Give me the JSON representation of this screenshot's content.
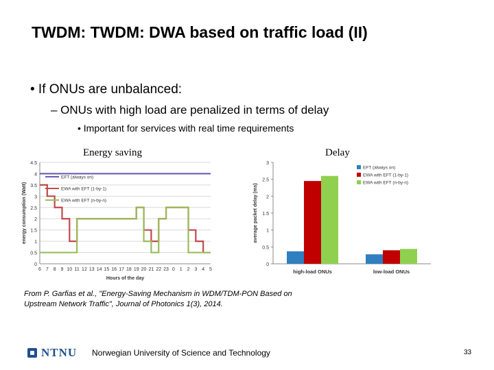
{
  "slide": {
    "title": "TWDM: TWDM: DWA based on traffic load (II)",
    "bullet1": "• If ONUs are unbalanced:",
    "bullet2": "– ONUs with high load are penalized in terms of delay",
    "bullet3": "• Important for services with real time requirements",
    "caption_left": "Energy saving",
    "caption_right": "Delay",
    "citation_line1": "From P. Garfias et al., \"Energy-Saving Mechanism in WDM/TDM-PON Based on",
    "citation_line2": "Upstream Network Traffic\", Journal of Photonics 1(3), 2014.",
    "footer": "Norwegian University of Science and Technology",
    "page_number": "33",
    "logo_text": "NTNU"
  },
  "chart_data": [
    {
      "type": "line",
      "xlabel": "Hours of the day",
      "ylabel": "energy consumption (Watt)",
      "ylim": [
        0,
        4.5
      ],
      "yticks": [
        "0",
        "0.5",
        "1",
        "1.5",
        "2",
        "2.5",
        "3",
        "3.5",
        "4",
        "4.5"
      ],
      "x": [
        "6",
        "7",
        "8",
        "9",
        "10",
        "11",
        "12",
        "13",
        "14",
        "15",
        "16",
        "17",
        "18",
        "19",
        "20",
        "21",
        "22",
        "23",
        "0",
        "1",
        "2",
        "3",
        "4",
        "5"
      ],
      "grid": true,
      "legend_position": "top-left",
      "series": [
        {
          "name": "EFT (always on)",
          "color": "#6a5bb8",
          "values": [
            4,
            4,
            4,
            4,
            4,
            4,
            4,
            4,
            4,
            4,
            4,
            4,
            4,
            4,
            4,
            4,
            4,
            4,
            4,
            4,
            4,
            4,
            4,
            4
          ]
        },
        {
          "name": "EWA with EFT (1-by-1)",
          "color": "#c04a4a",
          "values": [
            3.5,
            3,
            2.5,
            2,
            1,
            2,
            2,
            2,
            2,
            2,
            2,
            2,
            2,
            2.5,
            1.5,
            1,
            2,
            2.5,
            2.5,
            2.5,
            1.5,
            1,
            0.5,
            0.5
          ]
        },
        {
          "name": "EWA with EFT (n-by-n)",
          "color": "#9bbb59",
          "values": [
            0.5,
            0.5,
            0.5,
            0.5,
            0.5,
            2,
            2,
            2,
            2,
            2,
            2,
            2,
            2,
            2.5,
            1,
            0.5,
            2,
            2.5,
            2.5,
            2.5,
            0.5,
            0.5,
            0.5,
            0.5
          ]
        }
      ]
    },
    {
      "type": "bar",
      "ylabel": "average packet delay (ms)",
      "ylim": [
        0,
        3
      ],
      "yticks": [
        "0",
        "0.5",
        "1",
        "1.5",
        "2",
        "2.5",
        "3"
      ],
      "categories": [
        "high-load ONUs",
        "low-load ONUs"
      ],
      "legend_position": "top-right",
      "series": [
        {
          "name": "EFT (always on)",
          "color": "#2f7fc1",
          "values": [
            0.37,
            0.28
          ]
        },
        {
          "name": "EWA with EFT (1-by-1)",
          "color": "#c00000",
          "values": [
            2.45,
            0.4
          ]
        },
        {
          "name": "EWA with EFT (n-by-n)",
          "color": "#8fd14f",
          "values": [
            2.6,
            0.44
          ]
        }
      ]
    }
  ]
}
